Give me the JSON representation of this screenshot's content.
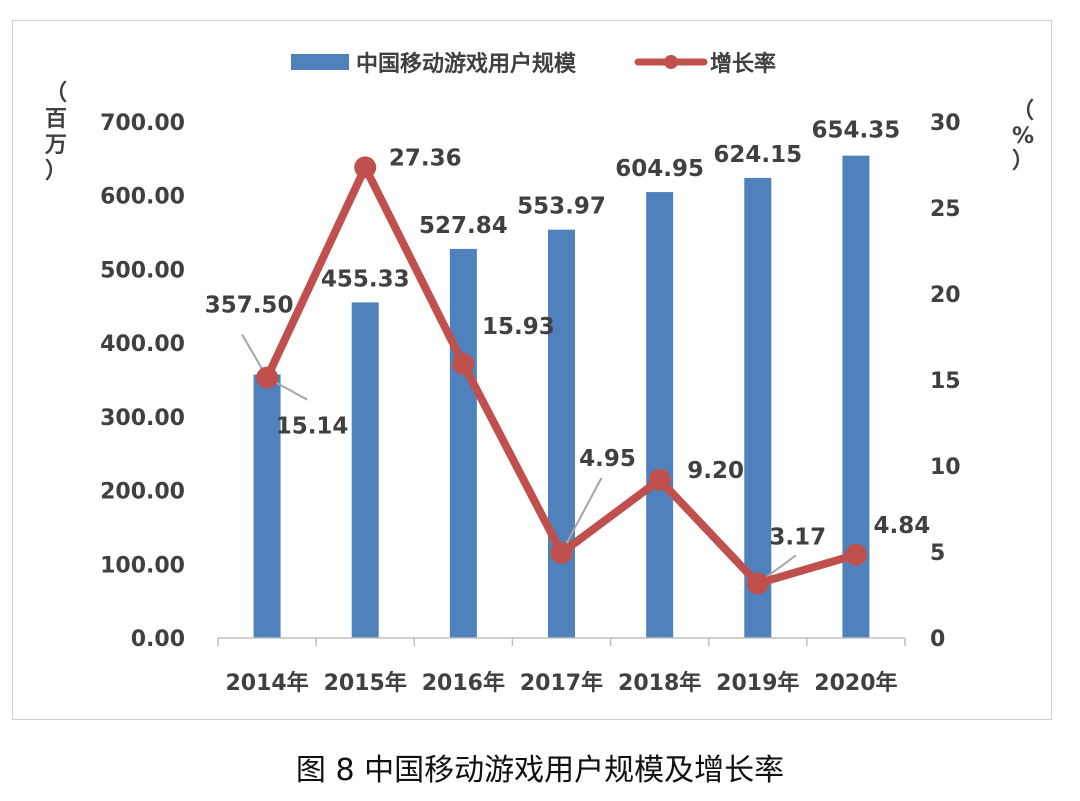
{
  "chart_data": {
    "type": "bar+line",
    "categories": [
      "2014年",
      "2015年",
      "2016年",
      "2017年",
      "2018年",
      "2019年",
      "2020年"
    ],
    "series": [
      {
        "name": "中国移动游戏用户规模",
        "type": "bar",
        "axis": "left",
        "color": "#4f81bd",
        "values": [
          357.5,
          455.33,
          527.84,
          553.97,
          604.95,
          624.15,
          654.35
        ],
        "labels": [
          "357.50",
          "455.33",
          "527.84",
          "553.97",
          "604.95",
          "624.15",
          "654.35"
        ]
      },
      {
        "name": "增长率",
        "type": "line",
        "axis": "right",
        "color": "#c0504d",
        "values": [
          15.14,
          27.36,
          15.93,
          4.95,
          9.2,
          3.17,
          4.84
        ],
        "labels": [
          "15.14",
          "27.36",
          "15.93",
          "4.95",
          "9.20",
          "3.17",
          "4.84"
        ]
      }
    ],
    "y_left": {
      "unit_label": [
        "（",
        "百",
        "万",
        "）"
      ],
      "ylim": [
        0,
        700
      ],
      "ticks": [
        "0.00",
        "100.00",
        "200.00",
        "300.00",
        "400.00",
        "500.00",
        "600.00",
        "700.00"
      ]
    },
    "y_right": {
      "unit_label": [
        "（",
        "%",
        "）"
      ],
      "ylim": [
        0,
        30
      ],
      "ticks": [
        "0",
        "5",
        "10",
        "15",
        "20",
        "25",
        "30"
      ]
    },
    "legend": "top-center",
    "grid": false
  },
  "caption": "图 8  中国移动游戏用户规模及增长率"
}
